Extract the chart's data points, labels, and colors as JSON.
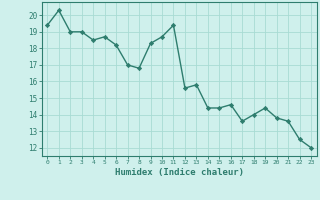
{
  "x": [
    0,
    1,
    2,
    3,
    4,
    5,
    6,
    7,
    8,
    9,
    10,
    11,
    12,
    13,
    14,
    15,
    16,
    17,
    18,
    19,
    20,
    21,
    22,
    23
  ],
  "y": [
    19.4,
    20.3,
    19.0,
    19.0,
    18.5,
    18.7,
    18.2,
    17.0,
    16.8,
    18.3,
    18.7,
    19.4,
    15.6,
    15.8,
    14.4,
    14.4,
    14.6,
    13.6,
    14.0,
    14.4,
    13.8,
    13.6,
    12.5,
    12.0
  ],
  "line_color": "#2e7d6e",
  "marker": "D",
  "marker_size": 2.2,
  "line_width": 1.0,
  "xlabel": "Humidex (Indice chaleur)",
  "xlim": [
    -0.5,
    23.5
  ],
  "ylim": [
    11.5,
    20.8
  ],
  "yticks": [
    12,
    13,
    14,
    15,
    16,
    17,
    18,
    19,
    20
  ],
  "xticks": [
    0,
    1,
    2,
    3,
    4,
    5,
    6,
    7,
    8,
    9,
    10,
    11,
    12,
    13,
    14,
    15,
    16,
    17,
    18,
    19,
    20,
    21,
    22,
    23
  ],
  "bg_color": "#cff0ec",
  "grid_color": "#a8dbd4",
  "text_color": "#2e7d6e",
  "axis_color": "#2e7d6e"
}
